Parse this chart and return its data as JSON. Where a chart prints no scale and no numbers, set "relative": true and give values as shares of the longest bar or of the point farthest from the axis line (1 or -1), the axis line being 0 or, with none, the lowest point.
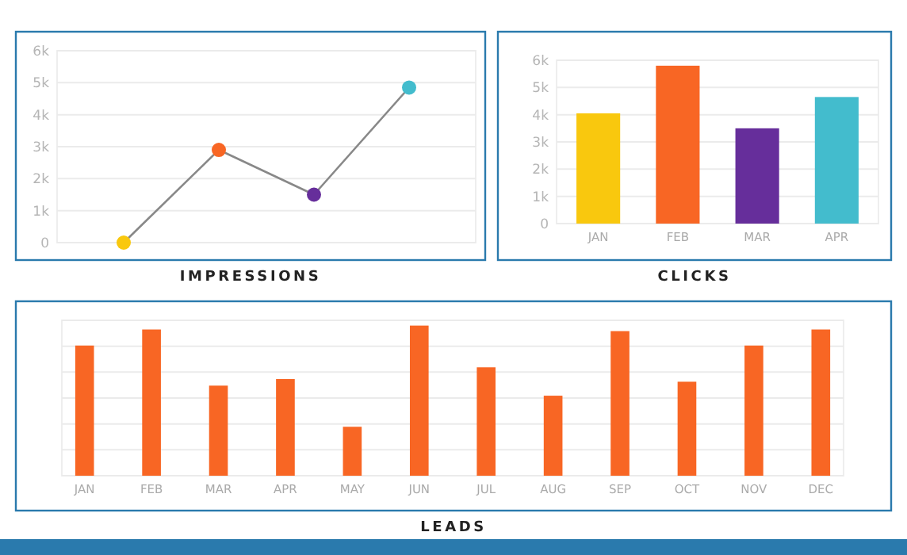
{
  "chart_data": [
    {
      "type": "line",
      "title": "IMPRESSIONS",
      "categories": [
        null,
        null,
        null,
        null
      ],
      "values": [
        0,
        2900,
        1500,
        4850
      ],
      "color": "#888888",
      "colors": [
        "#f9c80e",
        "#f86624",
        "#662e9b",
        "#43bccd"
      ],
      "marker": "circle",
      "ylim": [
        0,
        6000
      ],
      "yticks": [
        0,
        {
          "value": 1000,
          "label": "1k"
        },
        {
          "value": 2000,
          "label": "2k"
        },
        {
          "value": 3000,
          "label": "3k"
        },
        {
          "value": 4000,
          "label": "4k"
        },
        {
          "value": 5000,
          "label": "5k"
        },
        {
          "value": 6000,
          "label": "6k"
        }
      ],
      "grid": "y"
    },
    {
      "type": "bar",
      "title": "CLICKS",
      "categories": [
        "JAN",
        "FEB",
        "MAR",
        "APR"
      ],
      "values": [
        4050,
        5800,
        3500,
        4650
      ],
      "colors": [
        "#f9c80e",
        "#f86624",
        "#662e9b",
        "#43bccd"
      ],
      "ylim": [
        0,
        6000
      ],
      "yticks": [
        0,
        {
          "value": 1000,
          "label": "1k"
        },
        {
          "value": 2000,
          "label": "2k"
        },
        {
          "value": 3000,
          "label": "3k"
        },
        {
          "value": 4000,
          "label": "4k"
        },
        {
          "value": 5000,
          "label": "5k"
        },
        {
          "value": 6000,
          "label": "6k"
        }
      ],
      "grid": "y"
    },
    {
      "type": "bar",
      "title": "LEADS",
      "relative": true,
      "categories": [
        "JAN",
        "FEB",
        "MAR",
        "APR",
        "MAY",
        "JUN",
        "JUL",
        "AUG",
        "SEP",
        "OCT",
        "NOV",
        "DEC"
      ],
      "values": [
        0.867,
        0.974,
        0.6,
        0.644,
        0.326,
        1,
        0.722,
        0.533,
        0.963,
        0.626,
        0.867,
        0.974
      ],
      "color": "#f86624",
      "grid": true
    }
  ]
}
